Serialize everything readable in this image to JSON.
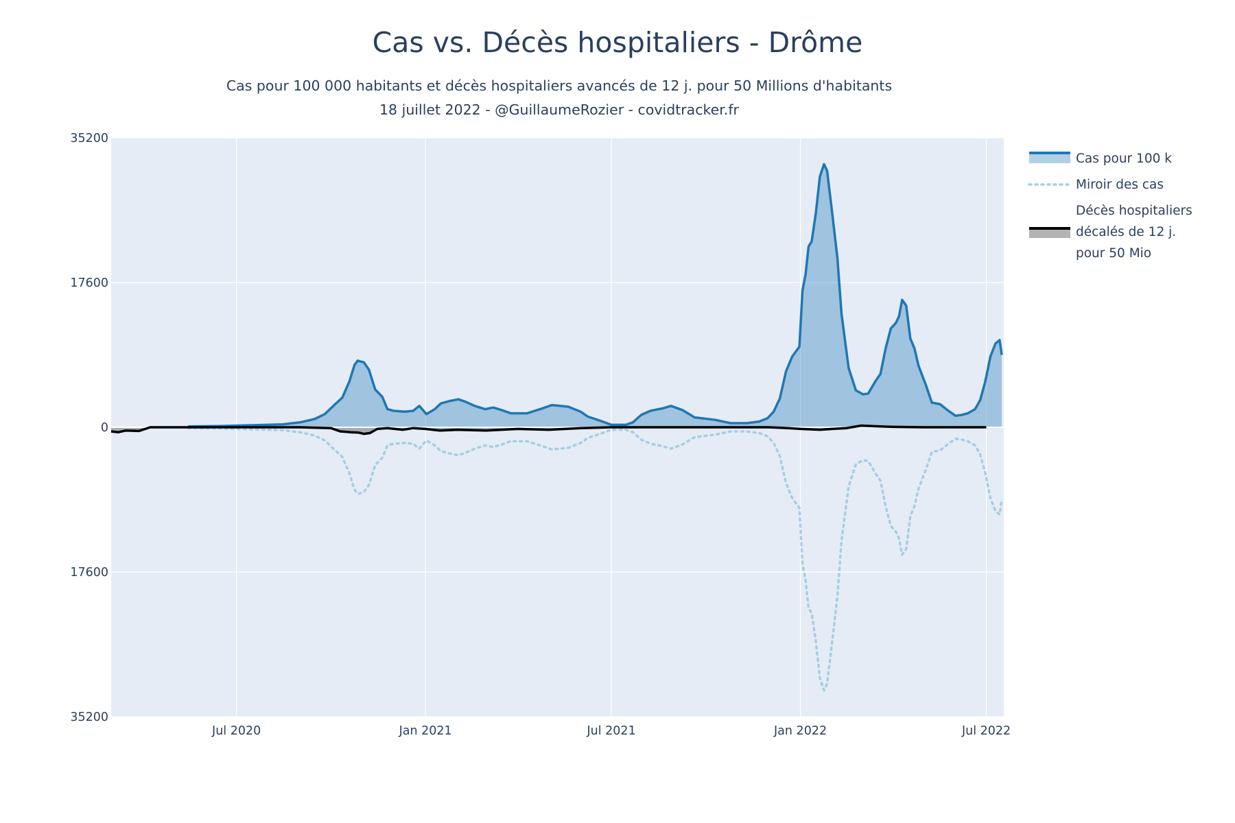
{
  "chart_data": {
    "type": "area",
    "title": "Cas vs. Décès hospitaliers - Drôme",
    "subtitle_line1": "Cas pour 100 000 habitants et décès hospitaliers avancés de 12 j. pour 50 Millions d'habitants",
    "subtitle_line2": "18 juillet 2022 - @GuillaumeRozier - covidtracker.fr",
    "ylim": [
      -35200,
      35200
    ],
    "y_ticks": [
      {
        "value": 35200,
        "label": "35200"
      },
      {
        "value": 17600,
        "label": "17600"
      },
      {
        "value": 0,
        "label": "0"
      },
      {
        "value": -17600,
        "label": "17600"
      },
      {
        "value": -35200,
        "label": "35200"
      }
    ],
    "xlim": [
      "2020-03-01",
      "2022-07-18"
    ],
    "x_ticks": [
      {
        "date": "2020-07-01",
        "label": "Jul 2020"
      },
      {
        "date": "2021-01-01",
        "label": "Jan 2021"
      },
      {
        "date": "2021-07-01",
        "label": "Jul 2021"
      },
      {
        "date": "2022-01-01",
        "label": "Jan 2022"
      },
      {
        "date": "2022-07-01",
        "label": "Jul 2022"
      }
    ],
    "grid": true,
    "legend_position": "right",
    "series": [
      {
        "name": "Cas pour 100 k",
        "color": "#1f77b4",
        "fill": "rgba(31,119,180,0.35)",
        "points": [
          [
            "2020-05-15",
            100
          ],
          [
            "2020-06-15",
            150
          ],
          [
            "2020-07-15",
            250
          ],
          [
            "2020-08-15",
            350
          ],
          [
            "2020-09-01",
            600
          ],
          [
            "2020-09-15",
            1000
          ],
          [
            "2020-09-25",
            1600
          ],
          [
            "2020-10-05",
            2800
          ],
          [
            "2020-10-12",
            3600
          ],
          [
            "2020-10-19",
            5600
          ],
          [
            "2020-10-24",
            7600
          ],
          [
            "2020-10-27",
            8100
          ],
          [
            "2020-11-02",
            7900
          ],
          [
            "2020-11-07",
            7000
          ],
          [
            "2020-11-13",
            4600
          ],
          [
            "2020-11-20",
            3700
          ],
          [
            "2020-11-25",
            2200
          ],
          [
            "2020-12-01",
            2000
          ],
          [
            "2020-12-12",
            1900
          ],
          [
            "2020-12-20",
            2000
          ],
          [
            "2020-12-26",
            2600
          ],
          [
            "2021-01-02",
            1600
          ],
          [
            "2021-01-10",
            2200
          ],
          [
            "2021-01-16",
            2900
          ],
          [
            "2021-01-25",
            3200
          ],
          [
            "2021-02-02",
            3400
          ],
          [
            "2021-02-09",
            3100
          ],
          [
            "2021-02-18",
            2600
          ],
          [
            "2021-02-28",
            2200
          ],
          [
            "2021-03-08",
            2400
          ],
          [
            "2021-03-16",
            2100
          ],
          [
            "2021-03-25",
            1700
          ],
          [
            "2021-04-10",
            1700
          ],
          [
            "2021-04-25",
            2300
          ],
          [
            "2021-05-04",
            2700
          ],
          [
            "2021-05-12",
            2600
          ],
          [
            "2021-05-20",
            2500
          ],
          [
            "2021-06-01",
            1900
          ],
          [
            "2021-06-08",
            1300
          ],
          [
            "2021-06-20",
            800
          ],
          [
            "2021-07-01",
            300
          ],
          [
            "2021-07-15",
            300
          ],
          [
            "2021-07-22",
            600
          ],
          [
            "2021-07-30",
            1500
          ],
          [
            "2021-08-08",
            2000
          ],
          [
            "2021-08-20",
            2300
          ],
          [
            "2021-08-28",
            2600
          ],
          [
            "2021-09-08",
            2100
          ],
          [
            "2021-09-20",
            1200
          ],
          [
            "2021-10-10",
            900
          ],
          [
            "2021-10-25",
            500
          ],
          [
            "2021-11-10",
            500
          ],
          [
            "2021-11-22",
            700
          ],
          [
            "2021-11-30",
            1100
          ],
          [
            "2021-12-06",
            1900
          ],
          [
            "2021-12-12",
            3500
          ],
          [
            "2021-12-18",
            6800
          ],
          [
            "2021-12-24",
            8600
          ],
          [
            "2021-12-31",
            9800
          ],
          [
            "2022-01-03",
            16600
          ],
          [
            "2022-01-06",
            18600
          ],
          [
            "2022-01-09",
            22000
          ],
          [
            "2022-01-12",
            22600
          ],
          [
            "2022-01-16",
            26000
          ],
          [
            "2022-01-20",
            30500
          ],
          [
            "2022-01-24",
            32000
          ],
          [
            "2022-01-27",
            31200
          ],
          [
            "2022-02-01",
            26000
          ],
          [
            "2022-02-06",
            20600
          ],
          [
            "2022-02-10",
            13800
          ],
          [
            "2022-02-17",
            7200
          ],
          [
            "2022-02-24",
            4500
          ],
          [
            "2022-03-03",
            4000
          ],
          [
            "2022-03-08",
            4100
          ],
          [
            "2022-03-15",
            5600
          ],
          [
            "2022-03-20",
            6500
          ],
          [
            "2022-03-25",
            9600
          ],
          [
            "2022-03-30",
            12000
          ],
          [
            "2022-04-04",
            12700
          ],
          [
            "2022-04-07",
            13500
          ],
          [
            "2022-04-10",
            15500
          ],
          [
            "2022-04-14",
            14800
          ],
          [
            "2022-04-18",
            10800
          ],
          [
            "2022-04-22",
            9600
          ],
          [
            "2022-04-26",
            7500
          ],
          [
            "2022-05-03",
            5200
          ],
          [
            "2022-05-09",
            3000
          ],
          [
            "2022-05-17",
            2800
          ],
          [
            "2022-05-24",
            2100
          ],
          [
            "2022-06-01",
            1400
          ],
          [
            "2022-06-07",
            1500
          ],
          [
            "2022-06-13",
            1700
          ],
          [
            "2022-06-20",
            2200
          ],
          [
            "2022-06-25",
            3300
          ],
          [
            "2022-06-30",
            5600
          ],
          [
            "2022-07-05",
            8600
          ],
          [
            "2022-07-10",
            10200
          ],
          [
            "2022-07-14",
            10600
          ],
          [
            "2022-07-16",
            8800
          ]
        ]
      },
      {
        "name": "Miroir des cas",
        "color": "#a6cee3",
        "dash": "dot",
        "mirror_of": "Cas pour 100 k"
      },
      {
        "name": "Décès hospitaliers décalés de 12 j. pour 50 Mio",
        "legend_lines": [
          "Décès hospitaliers",
          "décalés de 12 j.",
          "pour 50 Mio"
        ],
        "color": "#000000",
        "fill": "rgba(128,128,128,0.6)",
        "points": [
          [
            "2020-03-01",
            -500
          ],
          [
            "2020-03-08",
            -600
          ],
          [
            "2020-03-15",
            -400
          ],
          [
            "2020-03-28",
            -450
          ],
          [
            "2020-04-08",
            0
          ],
          [
            "2020-06-01",
            0
          ],
          [
            "2020-09-01",
            0
          ],
          [
            "2020-10-01",
            -100
          ],
          [
            "2020-10-10",
            -500
          ],
          [
            "2020-10-20",
            -600
          ],
          [
            "2020-10-28",
            -650
          ],
          [
            "2020-11-02",
            -800
          ],
          [
            "2020-11-08",
            -700
          ],
          [
            "2020-11-15",
            -200
          ],
          [
            "2020-11-25",
            -100
          ],
          [
            "2020-12-10",
            -300
          ],
          [
            "2020-12-20",
            -100
          ],
          [
            "2021-01-01",
            -200
          ],
          [
            "2021-01-15",
            -400
          ],
          [
            "2021-02-01",
            -300
          ],
          [
            "2021-03-01",
            -400
          ],
          [
            "2021-04-01",
            -200
          ],
          [
            "2021-05-01",
            -300
          ],
          [
            "2021-06-01",
            -100
          ],
          [
            "2021-07-01",
            0
          ],
          [
            "2021-12-01",
            0
          ],
          [
            "2021-12-20",
            -100
          ],
          [
            "2022-01-01",
            -200
          ],
          [
            "2022-01-20",
            -300
          ],
          [
            "2022-02-01",
            -200
          ],
          [
            "2022-02-15",
            -100
          ],
          [
            "2022-03-01",
            200
          ],
          [
            "2022-03-20",
            100
          ],
          [
            "2022-04-01",
            50
          ],
          [
            "2022-05-01",
            0
          ],
          [
            "2022-07-01",
            0
          ]
        ]
      }
    ]
  }
}
